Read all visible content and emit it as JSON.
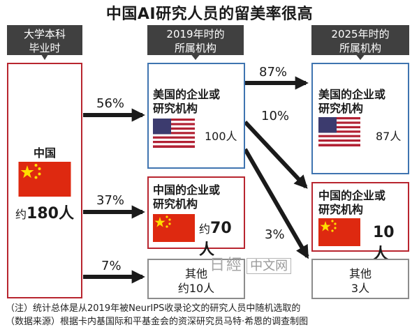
{
  "title": "中国AI研究人员的留美率很高",
  "headers": {
    "col1": [
      "大学本科",
      "毕业时"
    ],
    "col2": [
      "2019年时的",
      "所属机构"
    ],
    "col3": [
      "2025年时的",
      "所属机构"
    ]
  },
  "origin": {
    "country": "中国",
    "count_prefix": "约",
    "count": "180人"
  },
  "mid": {
    "us": {
      "label": [
        "美国的企业或",
        "研究机构"
      ],
      "count": "100人"
    },
    "cn": {
      "label": [
        "中国的企业或",
        "研究机构"
      ],
      "count_prefix": "约",
      "count": "70人"
    },
    "other": {
      "label": "其他",
      "count": "约10人"
    }
  },
  "right": {
    "us": {
      "label": [
        "美国的企业或",
        "研究机构"
      ],
      "count": "87人"
    },
    "cn": {
      "label": [
        "中国的企业或",
        "研究机构"
      ],
      "count": "10人"
    },
    "other": {
      "label": "其他",
      "count": "3人"
    }
  },
  "flows": {
    "origin_to_us": "56%",
    "origin_to_cn": "37%",
    "origin_to_other": "7%",
    "us_to_us": "87%",
    "us_to_cn": "10%",
    "us_to_other": "3%"
  },
  "notes": [
    "（注）统计总体是从2019年被NeurIPS收录论文的研究人员中随机选取的",
    "（数据来源）根据卡内基国际和平基金会的资深研究员马特·希恩的调查制图"
  ],
  "watermark": {
    "text": "日經",
    "box": "中文网"
  },
  "colors": {
    "us_border": "#3f74b0",
    "cn_border": "#b8252f",
    "other_border": "#8c8c8c",
    "header_bg": "#404040",
    "arrow": "#1a1a1a"
  }
}
